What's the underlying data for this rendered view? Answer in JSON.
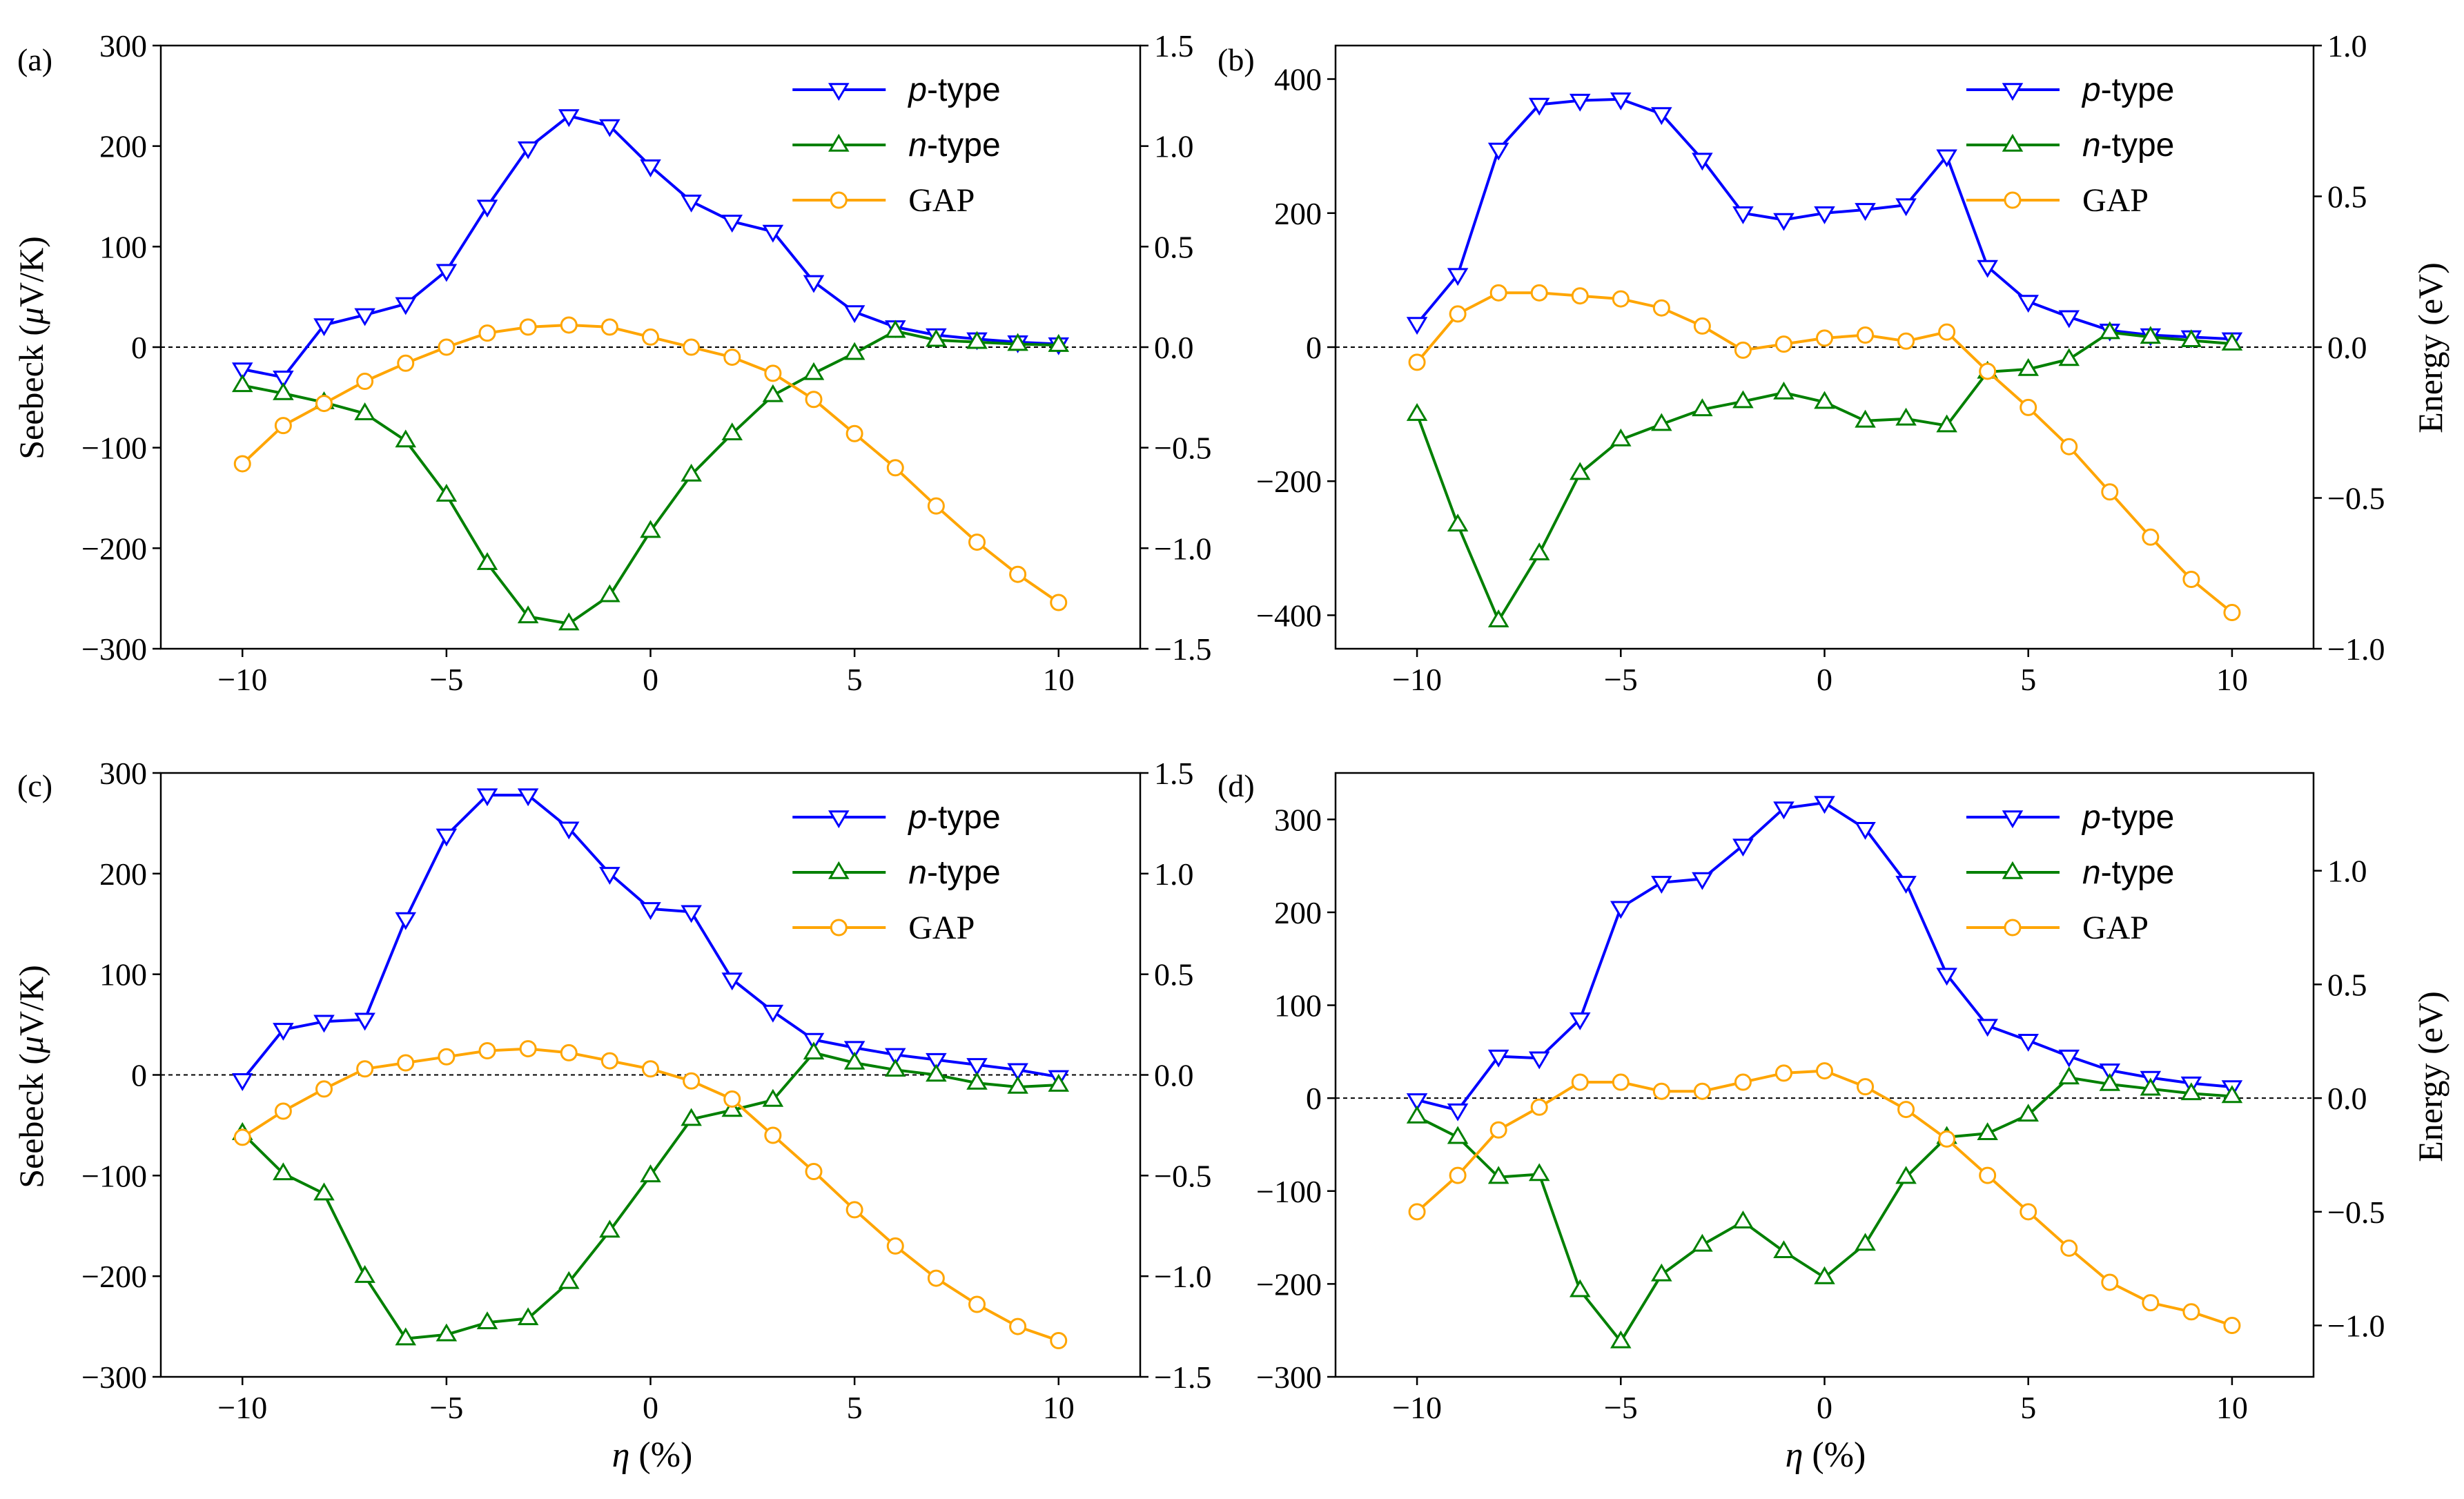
{
  "figure": {
    "xlabel_symbol": "η",
    "xlabel_rest": " (%)",
    "y_left_label": "Seebeck (",
    "y_left_mu": "μ",
    "y_left_rest": "V/K)",
    "y_right_label": "Energy (eV)"
  },
  "chart_data": [
    {
      "panel": "(a)",
      "type": "line",
      "x": [
        -10,
        -9,
        -8,
        -7,
        -6,
        -5,
        -4,
        -3,
        -2,
        -1,
        0,
        1,
        2,
        3,
        4,
        5,
        6,
        7,
        8,
        9,
        10
      ],
      "xlim": [
        -12,
        12
      ],
      "xticks": [
        -10,
        -5,
        0,
        5,
        10
      ],
      "xtick_labels": [
        "−10",
        "−5",
        "0",
        "5",
        "10"
      ],
      "ylim": [
        -300,
        300
      ],
      "yticks": [
        -300,
        -200,
        -100,
        0,
        100,
        200,
        300
      ],
      "ytick_labels": [
        "−300",
        "−200",
        "−100",
        "0",
        "100",
        "200",
        "300"
      ],
      "y2lim": [
        -1.5,
        1.5
      ],
      "y2ticks": [
        -1.5,
        -1.0,
        -0.5,
        0.0,
        0.5,
        1.0,
        1.5
      ],
      "y2tick_labels": [
        "−1.5",
        "−1.0",
        "−0.5",
        "0.0",
        "0.5",
        "1.0",
        "1.5"
      ],
      "series": [
        {
          "name": "p-type",
          "italic": "p",
          "rest": "-type",
          "axis": "left",
          "color": "#0000ff",
          "marker": "triangle-down",
          "values": [
            -22,
            -30,
            22,
            32,
            43,
            76,
            140,
            198,
            230,
            220,
            180,
            145,
            125,
            115,
            65,
            35,
            20,
            12,
            8,
            5,
            3
          ]
        },
        {
          "name": "n-type",
          "italic": "n",
          "rest": "-type",
          "axis": "left",
          "color": "#008000",
          "marker": "triangle-up",
          "values": [
            -38,
            -46,
            -55,
            -66,
            -93,
            -147,
            -215,
            -268,
            -275,
            -247,
            -183,
            -127,
            -86,
            -48,
            -26,
            -6,
            16,
            7,
            5,
            3,
            2
          ]
        },
        {
          "name": "GAP",
          "italic": "",
          "rest": "GAP",
          "axis": "right",
          "color": "#ffa500",
          "marker": "circle",
          "values": [
            -0.58,
            -0.39,
            -0.28,
            -0.17,
            -0.08,
            0.0,
            0.07,
            0.1,
            0.11,
            0.1,
            0.05,
            0.0,
            -0.05,
            -0.13,
            -0.26,
            -0.43,
            -0.6,
            -0.79,
            -0.97,
            -1.13,
            -1.27
          ]
        }
      ]
    },
    {
      "panel": "(b)",
      "type": "line",
      "x": [
        -10,
        -9,
        -8,
        -7,
        -6,
        -5,
        -4,
        -3,
        -2,
        -1,
        0,
        1,
        2,
        3,
        4,
        5,
        6,
        7,
        8,
        9,
        10
      ],
      "xlim": [
        -12,
        12
      ],
      "xticks": [
        -10,
        -5,
        0,
        5,
        10
      ],
      "xtick_labels": [
        "−10",
        "−5",
        "0",
        "5",
        "10"
      ],
      "ylim": [
        -450,
        450
      ],
      "yticks": [
        -400,
        -200,
        0,
        200,
        400
      ],
      "ytick_labels": [
        "−400",
        "−200",
        "0",
        "200",
        "400"
      ],
      "y2lim": [
        -1.0,
        1.0
      ],
      "y2ticks": [
        -1.0,
        -0.5,
        0.0,
        0.5,
        1.0
      ],
      "y2tick_labels": [
        "−1.0",
        "−0.5",
        "0.0",
        "0.5",
        "1.0"
      ],
      "y2_label": true,
      "series": [
        {
          "name": "p-type",
          "italic": "p",
          "rest": "-type",
          "axis": "left",
          "color": "#0000ff",
          "marker": "triangle-down",
          "values": [
            35,
            108,
            295,
            362,
            368,
            370,
            348,
            280,
            200,
            190,
            200,
            205,
            212,
            285,
            120,
            68,
            45,
            25,
            18,
            15,
            12
          ]
        },
        {
          "name": "n-type",
          "italic": "n",
          "rest": "-type",
          "axis": "left",
          "color": "#008000",
          "marker": "triangle-up",
          "values": [
            -100,
            -265,
            -408,
            -308,
            -188,
            -138,
            -115,
            -93,
            -81,
            -68,
            -82,
            -110,
            -107,
            -117,
            -37,
            -33,
            -18,
            22,
            15,
            10,
            5
          ]
        },
        {
          "name": "GAP",
          "italic": "",
          "rest": "GAP",
          "axis": "right",
          "color": "#ffa500",
          "marker": "circle",
          "values": [
            -0.05,
            0.11,
            0.18,
            0.18,
            0.17,
            0.16,
            0.13,
            0.07,
            -0.01,
            0.01,
            0.03,
            0.04,
            0.02,
            0.05,
            -0.08,
            -0.2,
            -0.33,
            -0.48,
            -0.63,
            -0.77,
            -0.88
          ]
        }
      ]
    },
    {
      "panel": "(c)",
      "type": "line",
      "x": [
        -10,
        -9,
        -8,
        -7,
        -6,
        -5,
        -4,
        -3,
        -2,
        -1,
        0,
        1,
        2,
        3,
        4,
        5,
        6,
        7,
        8,
        9,
        10
      ],
      "xlim": [
        -12,
        12
      ],
      "xticks": [
        -10,
        -5,
        0,
        5,
        10
      ],
      "xtick_labels": [
        "−10",
        "−5",
        "0",
        "5",
        "10"
      ],
      "ylim": [
        -300,
        300
      ],
      "yticks": [
        -300,
        -200,
        -100,
        0,
        100,
        200,
        300
      ],
      "ytick_labels": [
        "−300",
        "−200",
        "−100",
        "0",
        "100",
        "200",
        "300"
      ],
      "y2lim": [
        -1.5,
        1.5
      ],
      "y2ticks": [
        -1.5,
        -1.0,
        -0.5,
        0.0,
        0.5,
        1.0,
        1.5
      ],
      "y2tick_labels": [
        "−1.5",
        "−1.0",
        "−0.5",
        "0.0",
        "0.5",
        "1.0",
        "1.5"
      ],
      "series": [
        {
          "name": "p-type",
          "italic": "p",
          "rest": "-type",
          "axis": "left",
          "color": "#0000ff",
          "marker": "triangle-down",
          "values": [
            -5,
            45,
            53,
            55,
            155,
            238,
            278,
            278,
            245,
            200,
            165,
            162,
            95,
            63,
            35,
            27,
            20,
            15,
            10,
            5,
            -2
          ]
        },
        {
          "name": "n-type",
          "italic": "n",
          "rest": "-type",
          "axis": "left",
          "color": "#008000",
          "marker": "triangle-up",
          "values": [
            -58,
            -98,
            -118,
            -200,
            -262,
            -258,
            -246,
            -242,
            -206,
            -155,
            -100,
            -44,
            -35,
            -25,
            22,
            12,
            5,
            0,
            -8,
            -12,
            -10
          ]
        },
        {
          "name": "GAP",
          "italic": "",
          "rest": "GAP",
          "axis": "right",
          "color": "#ffa500",
          "marker": "circle",
          "values": [
            -0.31,
            -0.18,
            -0.07,
            0.03,
            0.06,
            0.09,
            0.12,
            0.13,
            0.11,
            0.07,
            0.03,
            -0.03,
            -0.12,
            -0.3,
            -0.48,
            -0.67,
            -0.85,
            -1.01,
            -1.14,
            -1.25,
            -1.32
          ]
        }
      ]
    },
    {
      "panel": "(d)",
      "type": "line",
      "x": [
        -10,
        -9,
        -8,
        -7,
        -6,
        -5,
        -4,
        -3,
        -2,
        -1,
        0,
        1,
        2,
        3,
        4,
        5,
        6,
        7,
        8,
        9,
        10
      ],
      "xlim": [
        -12,
        12
      ],
      "xticks": [
        -10,
        -5,
        0,
        5,
        10
      ],
      "xtick_labels": [
        "−10",
        "−5",
        "0",
        "5",
        "10"
      ],
      "ylim": [
        -300,
        350
      ],
      "yticks": [
        -300,
        -200,
        -100,
        0,
        100,
        200,
        300
      ],
      "ytick_labels": [
        "−300",
        "−200",
        "−100",
        "0",
        "100",
        "200",
        "300"
      ],
      "y2lim": [
        -1.226,
        1.43
      ],
      "y2ticks": [
        -1.0,
        -0.5,
        0.0,
        0.5,
        1.0
      ],
      "y2tick_labels": [
        "−1.0",
        "−0.5",
        "0.0",
        "0.5",
        "1.0"
      ],
      "y2_label": true,
      "series": [
        {
          "name": "p-type",
          "italic": "p",
          "rest": "-type",
          "axis": "left",
          "color": "#0000ff",
          "marker": "triangle-down",
          "values": [
            -2,
            -13,
            45,
            43,
            85,
            205,
            232,
            236,
            272,
            312,
            318,
            290,
            232,
            133,
            78,
            62,
            45,
            30,
            22,
            16,
            12
          ]
        },
        {
          "name": "n-type",
          "italic": "n",
          "rest": "-type",
          "axis": "left",
          "color": "#008000",
          "marker": "triangle-up",
          "values": [
            -20,
            -42,
            -85,
            -82,
            -207,
            -262,
            -190,
            -158,
            -133,
            -165,
            -193,
            -157,
            -85,
            -42,
            -38,
            -18,
            22,
            15,
            10,
            5,
            2
          ]
        },
        {
          "name": "GAP",
          "italic": "",
          "rest": "GAP",
          "axis": "right",
          "color": "#ffa500",
          "marker": "circle",
          "values": [
            -0.5,
            -0.34,
            -0.14,
            -0.04,
            0.07,
            0.07,
            0.03,
            0.03,
            0.07,
            0.11,
            0.12,
            0.05,
            -0.05,
            -0.18,
            -0.34,
            -0.5,
            -0.66,
            -0.81,
            -0.9,
            -0.94,
            -1.0
          ]
        }
      ]
    }
  ]
}
